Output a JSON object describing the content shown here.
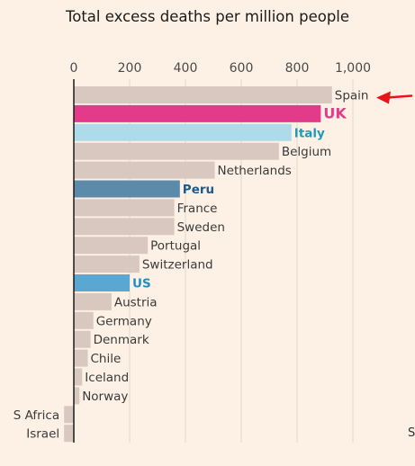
{
  "chart_data": {
    "type": "bar",
    "orientation": "horizontal",
    "title": "Total excess deaths per million people",
    "xlim": [
      0,
      1000
    ],
    "xticks": [
      0,
      200,
      400,
      600,
      800,
      1000
    ],
    "xtick_labels": [
      "0",
      "200",
      "400",
      "600",
      "800",
      "1,000"
    ],
    "grid": true,
    "categories": [
      "Spain",
      "UK",
      "Italy",
      "Belgium",
      "Netherlands",
      "Peru",
      "France",
      "Sweden",
      "Portugal",
      "Switzerland",
      "US",
      "Austria",
      "Germany",
      "Denmark",
      "Chile",
      "Iceland",
      "Norway",
      "S Africa",
      "Israel"
    ],
    "values": [
      925,
      885,
      780,
      735,
      505,
      380,
      360,
      360,
      265,
      235,
      200,
      135,
      70,
      60,
      50,
      30,
      20,
      -35,
      -35
    ],
    "highlight": {
      "UK": "#e33b8a",
      "Italy": "#aedbea",
      "Peru": "#5b8aaa",
      "US": "#5aa7d2"
    },
    "label_colors": {
      "UK": "#e33b8a",
      "Italy": "#1c9bbd",
      "Peru": "#1f5a8a",
      "US": "#1c8fc4"
    },
    "default_bar_color": "#d8c8c0",
    "annotation": {
      "type": "arrow",
      "target": "Spain",
      "color": "#e8141b"
    }
  },
  "edge_text": "S"
}
